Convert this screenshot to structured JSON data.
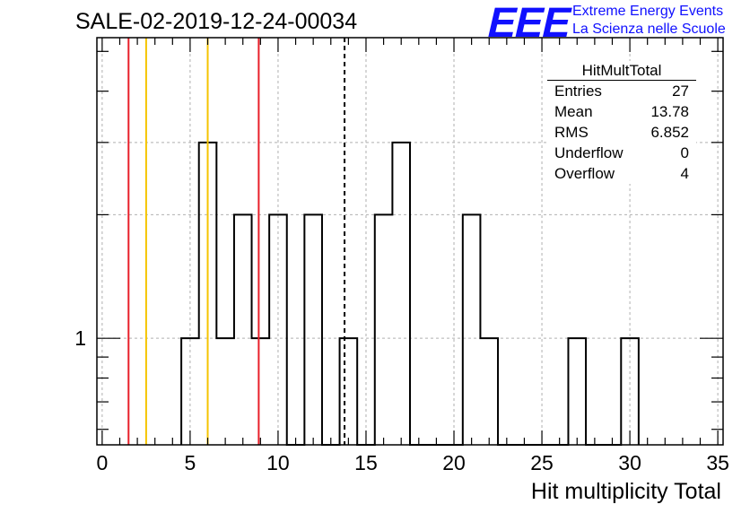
{
  "header": {
    "run_title": "SALE-02-2019-12-24-00034",
    "logo_text": "EEE",
    "logo_line1": "Extreme Energy Events",
    "logo_line2": "La Scienza nelle Scuole"
  },
  "stats_box": {
    "title": "HitMultTotal",
    "rows": [
      {
        "label": "Entries",
        "value": "27"
      },
      {
        "label": "Mean",
        "value": "13.78"
      },
      {
        "label": "RMS",
        "value": "6.852"
      },
      {
        "label": "Underflow",
        "value": "0"
      },
      {
        "label": "Overflow",
        "value": "4"
      }
    ]
  },
  "chart_data": {
    "type": "bar",
    "histogram": true,
    "xlabel": "Hit multiplicity Total",
    "ylabel": "",
    "xlim": [
      -0.3,
      35.3
    ],
    "ylim": [
      0.55,
      5.4
    ],
    "yscale": "log",
    "xticks": [
      0,
      5,
      10,
      15,
      20,
      25,
      30,
      35
    ],
    "yticks": [
      1
    ],
    "grid": true,
    "bin_width": 1,
    "bin_edges_start": 4.5,
    "bins": [
      {
        "x": 5,
        "value": 1
      },
      {
        "x": 6,
        "value": 3
      },
      {
        "x": 7,
        "value": 1
      },
      {
        "x": 8,
        "value": 2
      },
      {
        "x": 9,
        "value": 1
      },
      {
        "x": 10,
        "value": 2
      },
      {
        "x": 11,
        "value": 0
      },
      {
        "x": 12,
        "value": 2
      },
      {
        "x": 13,
        "value": 0
      },
      {
        "x": 14,
        "value": 1
      },
      {
        "x": 15,
        "value": 0
      },
      {
        "x": 16,
        "value": 2
      },
      {
        "x": 17,
        "value": 3
      },
      {
        "x": 18,
        "value": 0
      },
      {
        "x": 19,
        "value": 0
      },
      {
        "x": 20,
        "value": 0
      },
      {
        "x": 21,
        "value": 2
      },
      {
        "x": 22,
        "value": 1
      },
      {
        "x": 23,
        "value": 0
      },
      {
        "x": 24,
        "value": 0
      },
      {
        "x": 25,
        "value": 0
      },
      {
        "x": 26,
        "value": 0
      },
      {
        "x": 27,
        "value": 1
      },
      {
        "x": 28,
        "value": 0
      },
      {
        "x": 29,
        "value": 0
      },
      {
        "x": 30,
        "value": 1
      }
    ],
    "vertical_lines": [
      {
        "x": 1.5,
        "color": "#e8202a",
        "style": "solid"
      },
      {
        "x": 2.5,
        "color": "#f5c400",
        "style": "solid"
      },
      {
        "x": 6.0,
        "color": "#f5c400",
        "style": "solid"
      },
      {
        "x": 8.9,
        "color": "#e8202a",
        "style": "solid"
      },
      {
        "x": 13.78,
        "color": "#000000",
        "style": "dashed"
      }
    ]
  }
}
